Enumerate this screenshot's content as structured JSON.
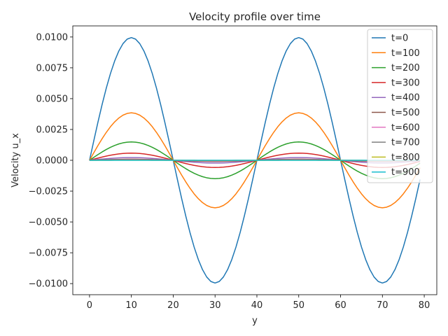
{
  "chart_data": {
    "type": "line",
    "title": "Velocity profile over time",
    "xlabel": "y",
    "ylabel": "Velocity u_x",
    "xlim": [
      -4,
      83
    ],
    "ylim": [
      -0.0109,
      0.0109
    ],
    "x_ticks": [
      0,
      10,
      20,
      30,
      40,
      50,
      60,
      70,
      80
    ],
    "x_tick_labels": [
      "0",
      "10",
      "20",
      "30",
      "40",
      "50",
      "60",
      "70",
      "80"
    ],
    "y_ticks": [
      0.01,
      0.0075,
      0.005,
      0.0025,
      0,
      -0.0025,
      -0.005,
      -0.0075,
      -0.01
    ],
    "y_tick_labels": [
      "0.0100",
      "0.0075",
      "0.0050",
      "0.0025",
      "0.0000",
      "−0.0025",
      "−0.0050",
      "−0.0075",
      "−0.0100"
    ],
    "grid": false,
    "legend_position": "top-right",
    "x_range": [
      0,
      79
    ],
    "wave_period": 40,
    "series": [
      {
        "name": "t=0",
        "amplitude": 0.00995,
        "color": "#1f77b4"
      },
      {
        "name": "t=100",
        "amplitude": 0.00385,
        "color": "#ff7f0e"
      },
      {
        "name": "t=200",
        "amplitude": 0.00149,
        "color": "#2ca02c"
      },
      {
        "name": "t=300",
        "amplitude": 0.00058,
        "color": "#d62728"
      },
      {
        "name": "t=400",
        "amplitude": 0.00022,
        "color": "#9467bd"
      },
      {
        "name": "t=500",
        "amplitude": 9e-05,
        "color": "#8c564b"
      },
      {
        "name": "t=600",
        "amplitude": 3.3e-05,
        "color": "#e377c2"
      },
      {
        "name": "t=700",
        "amplitude": 1.3e-05,
        "color": "#7f7f7f"
      },
      {
        "name": "t=800",
        "amplitude": 5e-06,
        "color": "#bcbd22"
      },
      {
        "name": "t=900",
        "amplitude": 2e-06,
        "color": "#17becf"
      }
    ]
  }
}
